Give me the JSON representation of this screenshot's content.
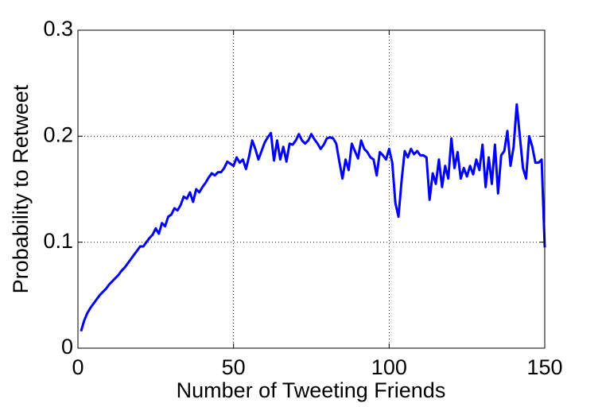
{
  "chart_data": {
    "type": "line",
    "xlabel": "Number of  Tweeting Friends",
    "ylabel": "Probability to Retweet",
    "xlim": [
      0,
      150
    ],
    "xticks": [
      0,
      50,
      100,
      150
    ],
    "ylim": [
      0,
      0.3
    ],
    "yticks": [
      0,
      0.1,
      0.2,
      0.3
    ],
    "grid": true,
    "x": [
      1,
      2,
      3,
      4,
      5,
      6,
      7,
      8,
      9,
      10,
      11,
      12,
      13,
      14,
      15,
      16,
      17,
      18,
      19,
      20,
      21,
      22,
      23,
      24,
      25,
      26,
      27,
      28,
      29,
      30,
      31,
      32,
      33,
      34,
      35,
      36,
      37,
      38,
      39,
      40,
      41,
      42,
      43,
      44,
      45,
      46,
      47,
      48,
      49,
      50,
      51,
      52,
      53,
      54,
      55,
      56,
      57,
      58,
      59,
      60,
      61,
      62,
      63,
      64,
      65,
      66,
      67,
      68,
      69,
      70,
      71,
      72,
      73,
      74,
      75,
      76,
      77,
      78,
      79,
      80,
      81,
      82,
      83,
      84,
      85,
      86,
      87,
      88,
      89,
      90,
      91,
      92,
      93,
      94,
      95,
      96,
      97,
      98,
      99,
      100,
      101,
      102,
      103,
      104,
      105,
      106,
      107,
      108,
      109,
      110,
      111,
      112,
      113,
      114,
      115,
      116,
      117,
      118,
      119,
      120,
      121,
      122,
      123,
      124,
      125,
      126,
      127,
      128,
      129,
      130,
      131,
      132,
      133,
      134,
      135,
      136,
      137,
      138,
      139,
      140,
      141,
      142,
      143,
      144,
      145,
      146,
      147,
      148,
      149,
      150
    ],
    "series": [
      {
        "name": "Probability to Retweet",
        "color": "#0000ff",
        "values": [
          0.016,
          0.026,
          0.033,
          0.038,
          0.042,
          0.046,
          0.05,
          0.053,
          0.056,
          0.06,
          0.063,
          0.066,
          0.069,
          0.073,
          0.076,
          0.08,
          0.084,
          0.088,
          0.092,
          0.096,
          0.096,
          0.1,
          0.104,
          0.107,
          0.113,
          0.108,
          0.118,
          0.115,
          0.124,
          0.126,
          0.132,
          0.13,
          0.135,
          0.143,
          0.141,
          0.147,
          0.138,
          0.15,
          0.147,
          0.152,
          0.156,
          0.161,
          0.165,
          0.163,
          0.166,
          0.166,
          0.17,
          0.176,
          0.174,
          0.172,
          0.18,
          0.175,
          0.178,
          0.169,
          0.181,
          0.196,
          0.188,
          0.178,
          0.186,
          0.194,
          0.199,
          0.203,
          0.177,
          0.196,
          0.178,
          0.19,
          0.176,
          0.193,
          0.192,
          0.196,
          0.202,
          0.196,
          0.193,
          0.196,
          0.202,
          0.197,
          0.193,
          0.188,
          0.192,
          0.198,
          0.199,
          0.198,
          0.193,
          0.176,
          0.16,
          0.178,
          0.168,
          0.193,
          0.186,
          0.179,
          0.196,
          0.188,
          0.185,
          0.18,
          0.178,
          0.163,
          0.185,
          0.182,
          0.178,
          0.188,
          0.175,
          0.137,
          0.124,
          0.158,
          0.186,
          0.18,
          0.188,
          0.183,
          0.186,
          0.182,
          0.182,
          0.18,
          0.14,
          0.165,
          0.155,
          0.178,
          0.152,
          0.172,
          0.16,
          0.198,
          0.17,
          0.185,
          0.16,
          0.17,
          0.162,
          0.172,
          0.164,
          0.178,
          0.168,
          0.192,
          0.152,
          0.18,
          0.155,
          0.192,
          0.146,
          0.182,
          0.186,
          0.205,
          0.172,
          0.19,
          0.23,
          0.2,
          0.17,
          0.16,
          0.2,
          0.19,
          0.175,
          0.175,
          0.178,
          0.095
        ]
      }
    ]
  }
}
